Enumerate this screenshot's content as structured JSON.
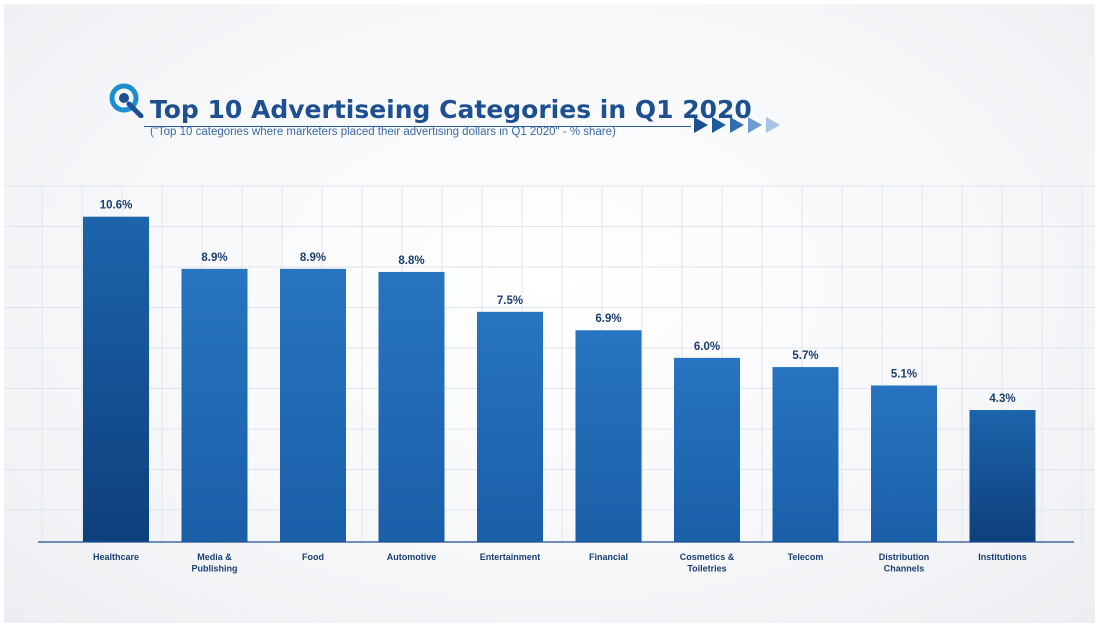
{
  "header": {
    "title": "Top 10 Advertiseing Categories in Q1 2020",
    "subtitle": "(\"Top 10 categories where marketers placed their advertising dollars in Q1 2020\" - % share)",
    "logo_icon": "q-logo-icon",
    "arrow_icon": "double-chevron-right-icon",
    "arrow_colors": [
      "#1d4f91",
      "#1f5a9e",
      "#2f6fb0",
      "#6d9bd0",
      "#a8c4e6"
    ]
  },
  "chart_data": {
    "type": "bar",
    "categories": [
      "Healthcare",
      "Media & Publishing",
      "Food",
      "Automotive",
      "Entertainment",
      "Financial",
      "Cosmetics & Toiletries",
      "Telecom",
      "Distribution Channels",
      "Institutions"
    ],
    "category_lines": [
      [
        "Healthcare"
      ],
      [
        "Media &",
        "Publishing"
      ],
      [
        "Food"
      ],
      [
        "Automotive"
      ],
      [
        "Entertainment"
      ],
      [
        "Financial"
      ],
      [
        "Cosmetics &",
        "Toiletries"
      ],
      [
        "Telecom"
      ],
      [
        "Distribution",
        "Channels"
      ],
      [
        "Institutions"
      ]
    ],
    "values": [
      10.6,
      8.9,
      8.9,
      8.8,
      7.5,
      6.9,
      6.0,
      5.7,
      5.1,
      4.3
    ],
    "labels": [
      "10.6%",
      "8.9%",
      "8.9%",
      "8.8%",
      "7.5%",
      "6.9%",
      "6.0%",
      "5.7%",
      "5.1%",
      "4.3%"
    ],
    "unit": "%",
    "ylim": [
      0,
      11.6
    ],
    "grid": true,
    "legend": "none",
    "colors": {
      "bar_top": "#2874c0",
      "bar_bottom": "#1a5fa8",
      "bar_dark_top": "#1c64ac",
      "bar_dark_bottom": "#0e3f7c",
      "label": "#1a3f70",
      "axis": "#1d4f91",
      "grid": "#e1e5eb"
    }
  }
}
